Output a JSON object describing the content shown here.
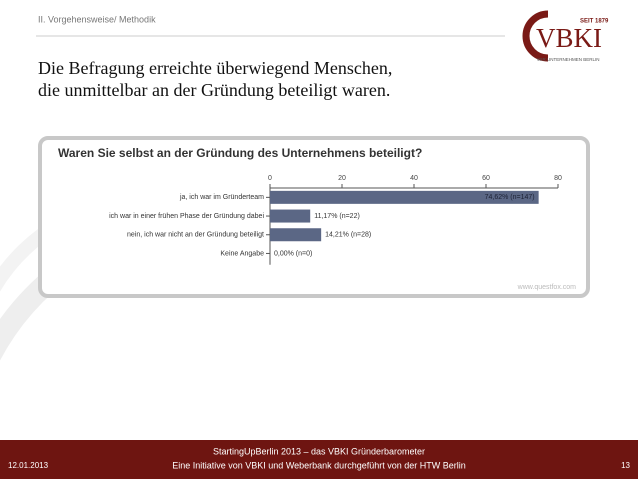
{
  "header": {
    "section": "II. Vorgehensweise/ Methodik",
    "logo_since": "SEIT 1879",
    "logo_name": "VBKI",
    "logo_claim": "WIR UNTERNEHMEN BERLIN"
  },
  "slide_title": [
    "Die Befragung erreichte überwiegend Menschen,",
    "die unmittelbar an der Gründung beteiligt waren."
  ],
  "chart_data": {
    "type": "bar",
    "orientation": "horizontal",
    "title": "Waren Sie selbst an der Gründung des Unternehmens beteiligt?",
    "categories": [
      "ja, ich war im Gründerteam",
      "ich war in einer frühen Phase der Gründung dabei",
      "nein, ich war nicht an der Gründung beteiligt",
      "Keine Angabe"
    ],
    "values": [
      74.62,
      11.17,
      14.21,
      0
    ],
    "value_labels": [
      "74,62% (n=147)",
      "11,17% (n=22)",
      "14,21% (n=28)",
      "0,00% (n=0)"
    ],
    "color": "#5b6785",
    "xlim": [
      0,
      80
    ],
    "xticks": [
      0,
      20,
      40,
      60,
      80
    ],
    "watermark": "www.questfox.com"
  },
  "footer": {
    "date": "12.01.2013",
    "line1": "StartingUpBerlin 2013 – das VBKI Gründerbarometer",
    "line2": "Eine Initiative von VBKI und Weberbank durchgeführt von der HTW Berlin",
    "page": "13"
  }
}
